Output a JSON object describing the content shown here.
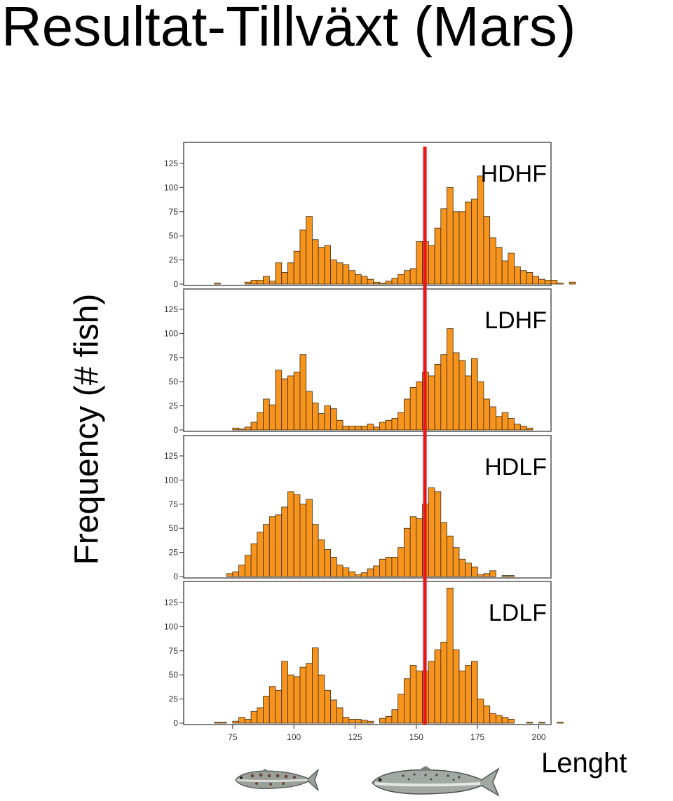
{
  "slide": {
    "title": "Resultat-Tillväxt (Mars)"
  },
  "chart_data": {
    "type": "bar",
    "subtype": "histogram-small-multiples",
    "ylabel": "Frequency (# fish)",
    "xlabel": "Lenght",
    "xlim": [
      55,
      205
    ],
    "ylim": [
      0,
      145
    ],
    "x_ticks": [
      75,
      100,
      125,
      150,
      175,
      200
    ],
    "y_ticks": [
      0,
      25,
      50,
      75,
      100,
      125
    ],
    "bin_width": 2.5,
    "bin_start": 67.5,
    "reference_line": {
      "x": 153.5,
      "color": "#e8161b"
    },
    "bar_color": "#f7941d",
    "series": [
      {
        "name": "HDHF",
        "values": [
          1,
          0,
          0,
          0,
          0,
          2,
          4,
          4,
          8,
          3,
          22,
          12,
          22,
          34,
          56,
          70,
          46,
          38,
          40,
          25,
          22,
          20,
          14,
          10,
          8,
          5,
          2,
          1,
          3,
          6,
          10,
          14,
          16,
          44,
          44,
          40,
          58,
          78,
          100,
          75,
          75,
          85,
          88,
          112,
          70,
          48,
          38,
          24,
          32,
          18,
          14,
          12,
          8,
          5,
          4,
          4,
          1,
          0,
          2
        ]
      },
      {
        "name": "LDHF",
        "values": [
          0,
          0,
          0,
          2,
          1,
          3,
          8,
          18,
          32,
          26,
          62,
          53,
          56,
          60,
          78,
          40,
          28,
          17,
          25,
          22,
          10,
          4,
          4,
          4,
          4,
          6,
          3,
          8,
          10,
          12,
          18,
          32,
          44,
          50,
          60,
          56,
          68,
          78,
          105,
          80,
          72,
          56,
          74,
          50,
          32,
          24,
          14,
          18,
          12,
          6,
          4,
          2,
          0,
          0,
          0,
          0,
          0,
          0,
          0
        ]
      },
      {
        "name": "HDLF",
        "values": [
          0,
          0,
          3,
          5,
          12,
          22,
          34,
          46,
          54,
          62,
          64,
          72,
          88,
          85,
          75,
          80,
          54,
          38,
          28,
          20,
          12,
          9,
          5,
          2,
          4,
          8,
          11,
          18,
          20,
          20,
          30,
          50,
          62,
          60,
          75,
          92,
          88,
          56,
          42,
          30,
          18,
          14,
          10,
          2,
          3,
          6,
          0,
          1,
          1,
          0,
          0,
          0,
          0,
          0,
          0,
          0,
          0,
          0,
          0
        ]
      },
      {
        "name": "LDLF",
        "values": [
          1,
          1,
          0,
          2,
          6,
          4,
          12,
          16,
          28,
          38,
          34,
          64,
          50,
          48,
          58,
          62,
          78,
          50,
          34,
          24,
          16,
          6,
          4,
          4,
          3,
          2,
          0,
          5,
          7,
          14,
          30,
          46,
          60,
          54,
          54,
          64,
          76,
          84,
          140,
          76,
          54,
          60,
          64,
          25,
          18,
          10,
          8,
          6,
          4,
          0,
          0,
          1,
          0,
          1,
          0,
          0,
          1,
          0,
          0
        ]
      }
    ]
  }
}
